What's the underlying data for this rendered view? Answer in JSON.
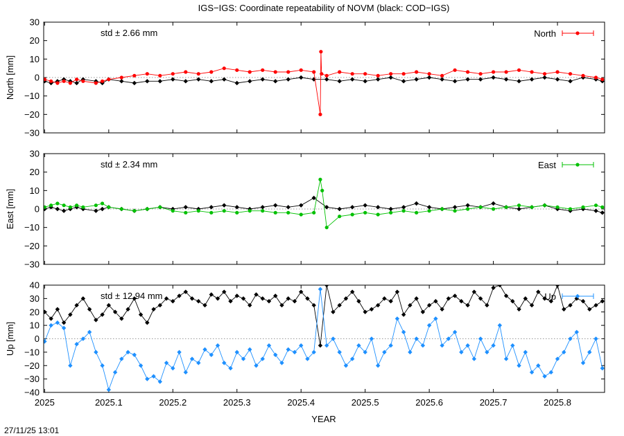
{
  "chart_data": {
    "type": "line",
    "title": "IGS−IGS: Coordinate repeatability of NOVM (black: COD−IGS)",
    "xlabel": "YEAR",
    "xlim": [
      2024.9985,
      2025.8735
    ],
    "x_ticks": [
      2025,
      2025.1,
      2025.2,
      2025.3,
      2025.4,
      2025.5,
      2025.6,
      2025.7,
      2025.8
    ],
    "x_tick_labels": [
      "2025",
      "2025.1",
      "2025.2",
      "2025.3",
      "2025.4",
      "2025.5",
      "2025.6",
      "2025.7",
      "2025.8"
    ],
    "timestamp": "27/11/25 13:01",
    "panels": [
      {
        "component": "North",
        "ylabel": "North [mm]",
        "ylim": [
          -30,
          30
        ],
        "y_ticks": [
          -30,
          -20,
          -10,
          0,
          10,
          20,
          30
        ],
        "std_label": "std ± 2.66 mm",
        "legend": "North",
        "color": "#ff0000",
        "marker": "circle",
        "zero_line": true,
        "series": [
          {
            "name": "IGS-IGS",
            "color": "#ff0000",
            "x": [
              2025.0,
              2025.01,
              2025.02,
              2025.03,
              2025.04,
              2025.05,
              2025.06,
              2025.08,
              2025.09,
              2025.1,
              2025.12,
              2025.14,
              2025.16,
              2025.18,
              2025.2,
              2025.22,
              2025.24,
              2025.26,
              2025.28,
              2025.3,
              2025.32,
              2025.34,
              2025.36,
              2025.38,
              2025.4,
              2025.42,
              2025.43,
              2025.431,
              2025.432,
              2025.44,
              2025.46,
              2025.48,
              2025.5,
              2025.52,
              2025.54,
              2025.56,
              2025.58,
              2025.6,
              2025.62,
              2025.64,
              2025.66,
              2025.68,
              2025.7,
              2025.72,
              2025.74,
              2025.76,
              2025.78,
              2025.8,
              2025.82,
              2025.84,
              2025.86,
              2025.87
            ],
            "values": [
              -1,
              -2,
              -3,
              -2,
              -3,
              -1,
              -2,
              -3,
              -2,
              -1,
              0,
              1,
              2,
              1,
              2,
              3,
              2,
              3,
              5,
              4,
              3,
              4,
              3,
              3,
              4,
              3,
              -20,
              14,
              2,
              1,
              3,
              2,
              2,
              1,
              2,
              2,
              3,
              2,
              1,
              4,
              3,
              2,
              3,
              3,
              4,
              3,
              2,
              3,
              2,
              1,
              0,
              -1
            ]
          },
          {
            "name": "COD-IGS",
            "color": "#000000",
            "x": [
              2025.0,
              2025.01,
              2025.02,
              2025.03,
              2025.04,
              2025.05,
              2025.06,
              2025.08,
              2025.09,
              2025.1,
              2025.12,
              2025.14,
              2025.16,
              2025.18,
              2025.2,
              2025.22,
              2025.24,
              2025.26,
              2025.28,
              2025.3,
              2025.32,
              2025.34,
              2025.36,
              2025.38,
              2025.4,
              2025.42,
              2025.44,
              2025.46,
              2025.48,
              2025.5,
              2025.52,
              2025.54,
              2025.56,
              2025.58,
              2025.6,
              2025.62,
              2025.64,
              2025.66,
              2025.68,
              2025.7,
              2025.72,
              2025.74,
              2025.76,
              2025.78,
              2025.8,
              2025.82,
              2025.84,
              2025.86,
              2025.87
            ],
            "values": [
              -2,
              -3,
              -2,
              -1,
              -2,
              -3,
              -1,
              -2,
              -3,
              -1,
              -2,
              -3,
              -2,
              -2,
              -1,
              -2,
              -1,
              -2,
              -1,
              -3,
              -2,
              -1,
              -2,
              -1,
              0,
              -1,
              -1,
              -2,
              -1,
              -2,
              -1,
              0,
              -2,
              -1,
              0,
              -1,
              -2,
              -1,
              -1,
              0,
              -1,
              -2,
              -1,
              0,
              -1,
              -2,
              0,
              -1,
              -2
            ]
          }
        ]
      },
      {
        "component": "East",
        "ylabel": "East [mm]",
        "ylim": [
          -30,
          30
        ],
        "y_ticks": [
          -30,
          -20,
          -10,
          0,
          10,
          20,
          30
        ],
        "std_label": "std ± 2.34 mm",
        "legend": "East",
        "color": "#00c000",
        "marker": "circle",
        "zero_line": true,
        "series": [
          {
            "name": "IGS-IGS",
            "color": "#00c000",
            "x": [
              2025.0,
              2025.01,
              2025.02,
              2025.03,
              2025.04,
              2025.05,
              2025.06,
              2025.08,
              2025.09,
              2025.1,
              2025.12,
              2025.14,
              2025.16,
              2025.18,
              2025.2,
              2025.22,
              2025.24,
              2025.26,
              2025.28,
              2025.3,
              2025.32,
              2025.34,
              2025.36,
              2025.38,
              2025.4,
              2025.42,
              2025.43,
              2025.433,
              2025.44,
              2025.46,
              2025.48,
              2025.5,
              2025.52,
              2025.54,
              2025.56,
              2025.58,
              2025.6,
              2025.62,
              2025.64,
              2025.66,
              2025.68,
              2025.7,
              2025.72,
              2025.74,
              2025.76,
              2025.78,
              2025.8,
              2025.82,
              2025.84,
              2025.86,
              2025.87
            ],
            "values": [
              1,
              2,
              3,
              2,
              1,
              2,
              1,
              2,
              3,
              1,
              0,
              -1,
              0,
              1,
              -1,
              -2,
              -1,
              -2,
              -1,
              -2,
              -1,
              -1,
              -2,
              -2,
              -3,
              -2,
              16,
              10,
              -10,
              -4,
              -3,
              -2,
              -3,
              -2,
              -1,
              -2,
              -1,
              0,
              -1,
              0,
              1,
              0,
              1,
              2,
              1,
              2,
              1,
              0,
              1,
              2,
              1
            ],
            "values_note": ""
          },
          {
            "name": "COD-IGS",
            "color": "#000000",
            "x": [
              2025.0,
              2025.01,
              2025.02,
              2025.03,
              2025.04,
              2025.05,
              2025.06,
              2025.08,
              2025.09,
              2025.1,
              2025.12,
              2025.14,
              2025.16,
              2025.18,
              2025.2,
              2025.22,
              2025.24,
              2025.26,
              2025.28,
              2025.3,
              2025.32,
              2025.34,
              2025.36,
              2025.38,
              2025.4,
              2025.42,
              2025.44,
              2025.46,
              2025.48,
              2025.5,
              2025.52,
              2025.54,
              2025.56,
              2025.58,
              2025.6,
              2025.62,
              2025.64,
              2025.66,
              2025.68,
              2025.7,
              2025.72,
              2025.74,
              2025.76,
              2025.78,
              2025.8,
              2025.82,
              2025.84,
              2025.86,
              2025.87
            ],
            "values": [
              0,
              1,
              0,
              -1,
              0,
              1,
              0,
              -1,
              0,
              1,
              0,
              -1,
              0,
              1,
              0,
              1,
              0,
              1,
              2,
              1,
              0,
              1,
              2,
              1,
              2,
              6,
              1,
              0,
              1,
              2,
              1,
              0,
              1,
              3,
              1,
              0,
              1,
              2,
              1,
              3,
              1,
              0,
              1,
              2,
              0,
              -1,
              0,
              -1,
              -2
            ]
          }
        ]
      },
      {
        "component": "Up",
        "ylabel": "Up [mm]",
        "ylim": [
          -40,
          40
        ],
        "y_ticks": [
          -40,
          -30,
          -20,
          -10,
          0,
          10,
          20,
          30,
          40
        ],
        "std_label": "std ± 12.94 mm",
        "legend": "Up",
        "color": "#1e90ff",
        "marker": "diamond",
        "zero_line": true,
        "series": [
          {
            "name": "IGS-IGS",
            "color": "#1e90ff",
            "x": [
              2025.0,
              2025.01,
              2025.02,
              2025.03,
              2025.04,
              2025.05,
              2025.06,
              2025.07,
              2025.08,
              2025.09,
              2025.1,
              2025.11,
              2025.12,
              2025.13,
              2025.14,
              2025.15,
              2025.16,
              2025.17,
              2025.18,
              2025.19,
              2025.2,
              2025.21,
              2025.22,
              2025.23,
              2025.24,
              2025.25,
              2025.26,
              2025.27,
              2025.28,
              2025.29,
              2025.3,
              2025.31,
              2025.32,
              2025.33,
              2025.34,
              2025.35,
              2025.36,
              2025.37,
              2025.38,
              2025.39,
              2025.4,
              2025.41,
              2025.42,
              2025.43,
              2025.44,
              2025.45,
              2025.46,
              2025.47,
              2025.48,
              2025.49,
              2025.5,
              2025.51,
              2025.52,
              2025.53,
              2025.54,
              2025.55,
              2025.56,
              2025.57,
              2025.58,
              2025.59,
              2025.6,
              2025.61,
              2025.62,
              2025.63,
              2025.64,
              2025.65,
              2025.66,
              2025.67,
              2025.68,
              2025.69,
              2025.7,
              2025.71,
              2025.72,
              2025.73,
              2025.74,
              2025.75,
              2025.76,
              2025.77,
              2025.78,
              2025.79,
              2025.8,
              2025.81,
              2025.82,
              2025.83,
              2025.84,
              2025.85,
              2025.86,
              2025.87
            ],
            "values": [
              -2,
              10,
              12,
              8,
              -20,
              -4,
              0,
              5,
              -10,
              -20,
              -38,
              -25,
              -15,
              -10,
              -12,
              -20,
              -30,
              -28,
              -32,
              -18,
              -22,
              -10,
              -25,
              -15,
              -18,
              -8,
              -12,
              -5,
              -18,
              -22,
              -10,
              -15,
              -8,
              -20,
              -15,
              -5,
              -12,
              -18,
              -8,
              -10,
              -5,
              -15,
              -10,
              37,
              -5,
              0,
              -10,
              -20,
              -15,
              -5,
              -10,
              0,
              -20,
              -10,
              -5,
              15,
              5,
              -10,
              0,
              -5,
              10,
              15,
              -5,
              0,
              5,
              -10,
              -5,
              -15,
              0,
              -10,
              -5,
              10,
              -15,
              -5,
              -20,
              -10,
              -25,
              -20,
              -28,
              -25,
              -15,
              -10,
              0,
              5,
              -18,
              -10,
              0,
              -22
            ]
          },
          {
            "name": "COD-IGS",
            "color": "#000000",
            "x": [
              2025.0,
              2025.01,
              2025.02,
              2025.03,
              2025.04,
              2025.05,
              2025.06,
              2025.07,
              2025.08,
              2025.09,
              2025.1,
              2025.11,
              2025.12,
              2025.13,
              2025.14,
              2025.15,
              2025.16,
              2025.17,
              2025.18,
              2025.19,
              2025.2,
              2025.21,
              2025.22,
              2025.23,
              2025.24,
              2025.25,
              2025.26,
              2025.27,
              2025.28,
              2025.29,
              2025.3,
              2025.31,
              2025.32,
              2025.33,
              2025.34,
              2025.35,
              2025.36,
              2025.37,
              2025.38,
              2025.39,
              2025.4,
              2025.41,
              2025.42,
              2025.43,
              2025.44,
              2025.45,
              2025.46,
              2025.47,
              2025.48,
              2025.49,
              2025.5,
              2025.51,
              2025.52,
              2025.53,
              2025.54,
              2025.55,
              2025.56,
              2025.57,
              2025.58,
              2025.59,
              2025.6,
              2025.61,
              2025.62,
              2025.63,
              2025.64,
              2025.65,
              2025.66,
              2025.67,
              2025.68,
              2025.69,
              2025.7,
              2025.71,
              2025.72,
              2025.73,
              2025.74,
              2025.75,
              2025.76,
              2025.77,
              2025.78,
              2025.79,
              2025.8,
              2025.81,
              2025.82,
              2025.83,
              2025.84,
              2025.85,
              2025.86,
              2025.87
            ],
            "values": [
              20,
              15,
              22,
              12,
              18,
              25,
              30,
              22,
              14,
              18,
              25,
              20,
              15,
              22,
              30,
              18,
              12,
              22,
              25,
              30,
              28,
              32,
              35,
              30,
              28,
              25,
              33,
              30,
              35,
              28,
              32,
              30,
              25,
              33,
              30,
              28,
              32,
              25,
              30,
              28,
              35,
              30,
              25,
              -5,
              40,
              20,
              25,
              30,
              35,
              28,
              20,
              22,
              25,
              30,
              28,
              35,
              18,
              25,
              30,
              20,
              25,
              28,
              22,
              30,
              32,
              28,
              25,
              35,
              30,
              25,
              38,
              40,
              32,
              28,
              22,
              30,
              25,
              35,
              30,
              28,
              40,
              22,
              25,
              30,
              28,
              22,
              25,
              28
            ]
          }
        ]
      }
    ]
  }
}
